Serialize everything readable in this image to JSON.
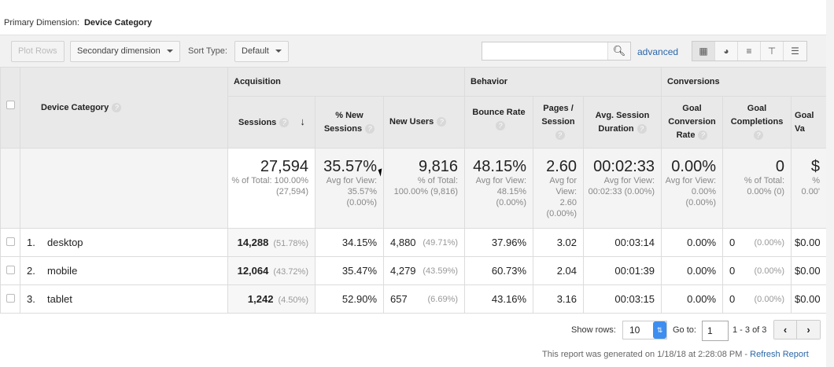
{
  "primary_dimension": {
    "label": "Primary Dimension:",
    "value": "Device Category"
  },
  "toolbar": {
    "plot_rows": "Plot Rows",
    "secondary_dimension": "Secondary dimension",
    "sort_type_label": "Sort Type:",
    "sort_type_value": "Default",
    "search_value": "",
    "advanced": "advanced"
  },
  "headers": {
    "dimension": "Device Category",
    "groups": [
      "Acquisition",
      "Behavior",
      "Conversions"
    ],
    "columns": [
      "Sessions",
      "% New Sessions",
      "New Users",
      "Bounce Rate",
      "Pages / Session",
      "Avg. Session Duration",
      "Goal Conversion Rate",
      "Goal Completions",
      "Goal Va"
    ]
  },
  "totals": [
    {
      "value": "27,594",
      "sub": "% of Total: 100.00% (27,594)"
    },
    {
      "value": "35.57%",
      "sub": "Avg for View: 35.57% (0.00%)"
    },
    {
      "value": "9,816",
      "sub": "% of Total: 100.00% (9,816)"
    },
    {
      "value": "48.15%",
      "sub": "Avg for View: 48.15% (0.00%)"
    },
    {
      "value": "2.60",
      "sub": "Avg for View: 2.60 (0.00%)"
    },
    {
      "value": "00:02:33",
      "sub": "Avg for View: 00:02:33 (0.00%)"
    },
    {
      "value": "0.00%",
      "sub": "Avg for View: 0.00% (0.00%)"
    },
    {
      "value": "0",
      "sub": "% of Total: 0.00% (0)"
    },
    {
      "value": "$",
      "sub": "% 0.00'"
    }
  ],
  "rows": [
    {
      "index": "1.",
      "name": "desktop",
      "sessions": "14,288",
      "sessions_pct": "(51.78%)",
      "new_sessions": "34.15%",
      "new_users": "4,880",
      "new_users_pct": "(49.71%)",
      "bounce": "37.96%",
      "pages": "3.02",
      "duration": "00:03:14",
      "gcr": "0.00%",
      "completions": "0",
      "completions_pct": "(0.00%)",
      "value": "$0.00"
    },
    {
      "index": "2.",
      "name": "mobile",
      "sessions": "12,064",
      "sessions_pct": "(43.72%)",
      "new_sessions": "35.47%",
      "new_users": "4,279",
      "new_users_pct": "(43.59%)",
      "bounce": "60.73%",
      "pages": "2.04",
      "duration": "00:01:39",
      "gcr": "0.00%",
      "completions": "0",
      "completions_pct": "(0.00%)",
      "value": "$0.00"
    },
    {
      "index": "3.",
      "name": "tablet",
      "sessions": "1,242",
      "sessions_pct": "(4.50%)",
      "new_sessions": "52.90%",
      "new_users": "657",
      "new_users_pct": "(6.69%)",
      "bounce": "43.16%",
      "pages": "3.16",
      "duration": "00:03:15",
      "gcr": "0.00%",
      "completions": "0",
      "completions_pct": "(0.00%)",
      "value": "$0.00"
    }
  ],
  "footer": {
    "show_rows_label": "Show rows:",
    "show_rows_value": "10",
    "goto_label": "Go to:",
    "goto_value": "1",
    "range": "1 - 3 of 3",
    "generated": "This report was generated on 1/18/18 at 2:28:08 PM - ",
    "refresh": "Refresh Report"
  }
}
